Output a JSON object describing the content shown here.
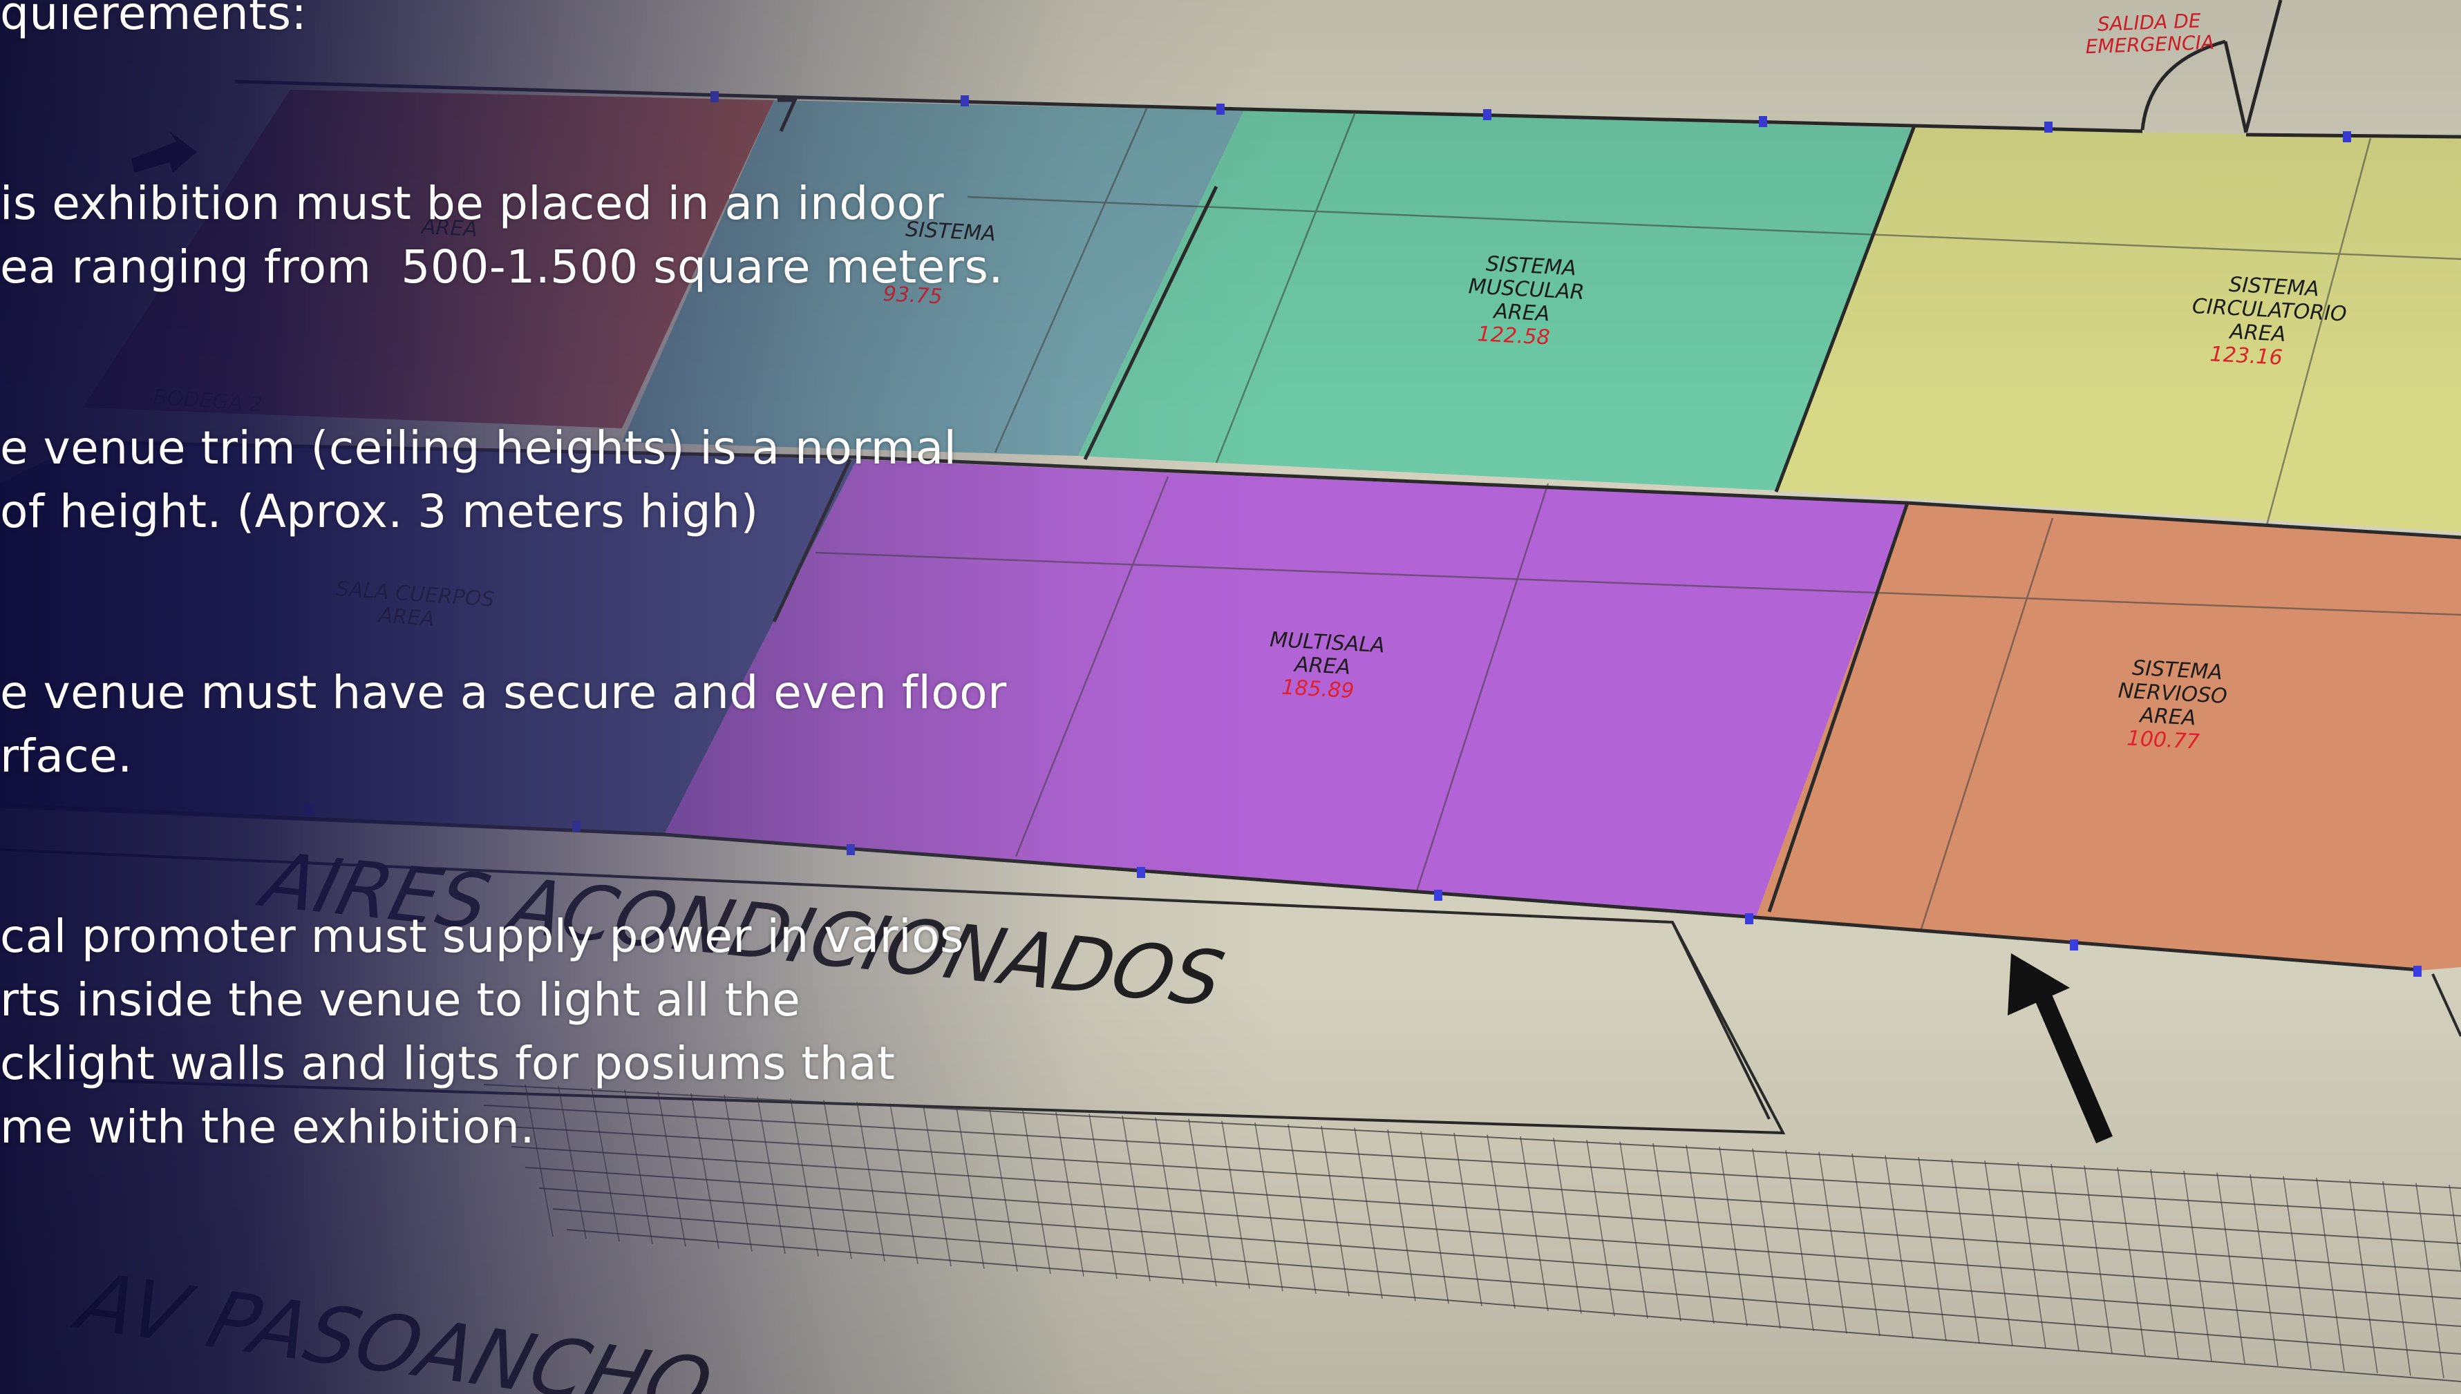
{
  "requirements": {
    "heading": "quierements:",
    "items": [
      {
        "lines": [
          "is exhibition must be placed in an indoor",
          "ea ranging from  500-1.500 square meters."
        ]
      },
      {
        "lines": [
          "e venue trim (ceiling heights) is a normal",
          "of height. (Aprox. 3 meters high)"
        ]
      },
      {
        "lines": [
          "e venue must have a secure and even floor",
          "rface."
        ]
      },
      {
        "lines": [
          "cal promoter must supply power in varios",
          "rts inside the venue to light all the",
          "cklight walls and ligts for posiums that",
          "me with the exhibition."
        ]
      }
    ]
  },
  "plan": {
    "emergency_exit": [
      "SALIDA DE",
      "EMERGENCIA"
    ],
    "rooms": [
      {
        "id": "red-room",
        "title": [
          "AREA"
        ],
        "area": "",
        "color": "#a14e4c"
      },
      {
        "id": "sistema",
        "title": [
          "SISTEMA"
        ],
        "area": "93.75",
        "color": "#6fa3ad"
      },
      {
        "id": "sistema-muscular",
        "title": [
          "SISTEMA",
          "MUSCULAR",
          "AREA"
        ],
        "area": "122.58",
        "color": "#68c9a4"
      },
      {
        "id": "sistema-circulatorio",
        "title": [
          "SISTEMA",
          "CIRCULATORIO",
          "AREA"
        ],
        "area": "123.16",
        "color": "#d6da84"
      },
      {
        "id": "sala-cuerpos",
        "title": [
          "SALA CUERPOS",
          "AREA"
        ],
        "area": "",
        "color": "#4a4f8d"
      },
      {
        "id": "multisala",
        "title": [
          "MULTISALA",
          "AREA"
        ],
        "area": "185.89",
        "color": "#b15fd7"
      },
      {
        "id": "sistema-nervioso",
        "title": [
          "SISTEMA",
          "NERVIOSO",
          "AREA"
        ],
        "area": "100.77",
        "color": "#d68c67"
      }
    ],
    "storage_label": [
      "BODEGA 2"
    ],
    "aires_label": "AIRES ACONDICIONADOS",
    "street_label": "AV PASOANCHO",
    "colors": {
      "label_red": "#e0202a",
      "label_dark": "#1c1c1c",
      "wall": "#2a2a2a",
      "marker": "#3a3de0"
    }
  }
}
